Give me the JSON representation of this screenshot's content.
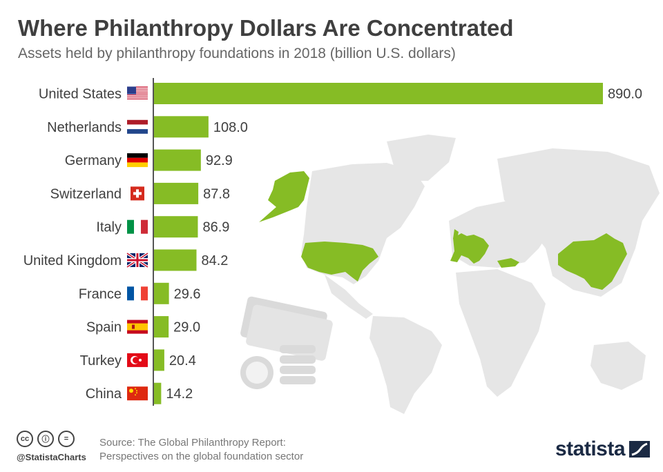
{
  "title": "Where Philanthropy Dollars Are Concentrated",
  "subtitle": "Assets held by philanthropy foundations in 2018 (billion U.S. dollars)",
  "colors": {
    "bar": "#86bc25",
    "map_land": "#e6e6e6",
    "map_highlight": "#86bc25",
    "text": "#3f3f3f",
    "brand": "#1b2a44"
  },
  "chart_data": {
    "type": "bar",
    "orientation": "horizontal",
    "categories": [
      "United States",
      "Netherlands",
      "Germany",
      "Switzerland",
      "Italy",
      "United Kingdom",
      "France",
      "Spain",
      "Turkey",
      "China"
    ],
    "values": [
      890.0,
      108.0,
      92.9,
      87.8,
      86.9,
      84.2,
      29.6,
      29.0,
      20.4,
      14.2
    ],
    "value_labels": [
      "890.0",
      "108.0",
      "92.9",
      "87.8",
      "86.9",
      "84.2",
      "29.6",
      "29.0",
      "20.4",
      "14.2"
    ],
    "flag_icons": [
      "us-flag-icon",
      "nl-flag-icon",
      "de-flag-icon",
      "ch-flag-icon",
      "it-flag-icon",
      "gb-flag-icon",
      "fr-flag-icon",
      "es-flag-icon",
      "tr-flag-icon",
      "cn-flag-icon"
    ],
    "title": "Where Philanthropy Dollars Are Concentrated",
    "xlabel": "",
    "ylabel": "",
    "xlim": [
      0,
      890
    ],
    "grid": false,
    "legend": "none"
  },
  "footer": {
    "cc_icons": [
      "cc",
      "ⓘ",
      "="
    ],
    "handle": "@StatistaCharts",
    "source_line1": "Source: The Global Philanthropy Report:",
    "source_line2": "Perspectives on the global foundation sector",
    "brand": "statista"
  }
}
